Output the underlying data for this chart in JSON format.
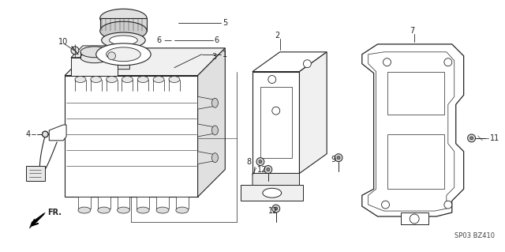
{
  "bg_color": "#ffffff",
  "diagram_code": "SP03 BZ410",
  "fig_width": 6.4,
  "fig_height": 3.19,
  "dpi": 100,
  "lc": "#222222",
  "tc": "#222222",
  "fs": 7
}
